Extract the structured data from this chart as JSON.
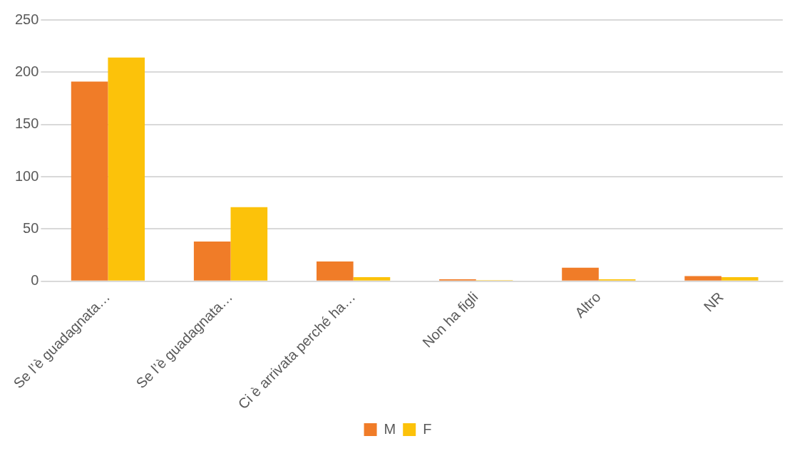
{
  "chart_data": {
    "type": "bar",
    "categories": [
      "Se l’è guadagnata…",
      "Se l’è guadagnata…",
      "Ci è arrivata perché ha…",
      "Non ha figli",
      "Altro",
      "NR"
    ],
    "series": [
      {
        "name": "M",
        "color": "#f07c28",
        "values": [
          191,
          38,
          19,
          2,
          13,
          5
        ]
      },
      {
        "name": "F",
        "color": "#fcc20a",
        "values": [
          214,
          71,
          4,
          1,
          2,
          4
        ]
      }
    ],
    "ylim": [
      0,
      250
    ],
    "yticks": [
      0,
      50,
      100,
      150,
      200,
      250
    ],
    "grid": "y",
    "legend": "bottom"
  }
}
